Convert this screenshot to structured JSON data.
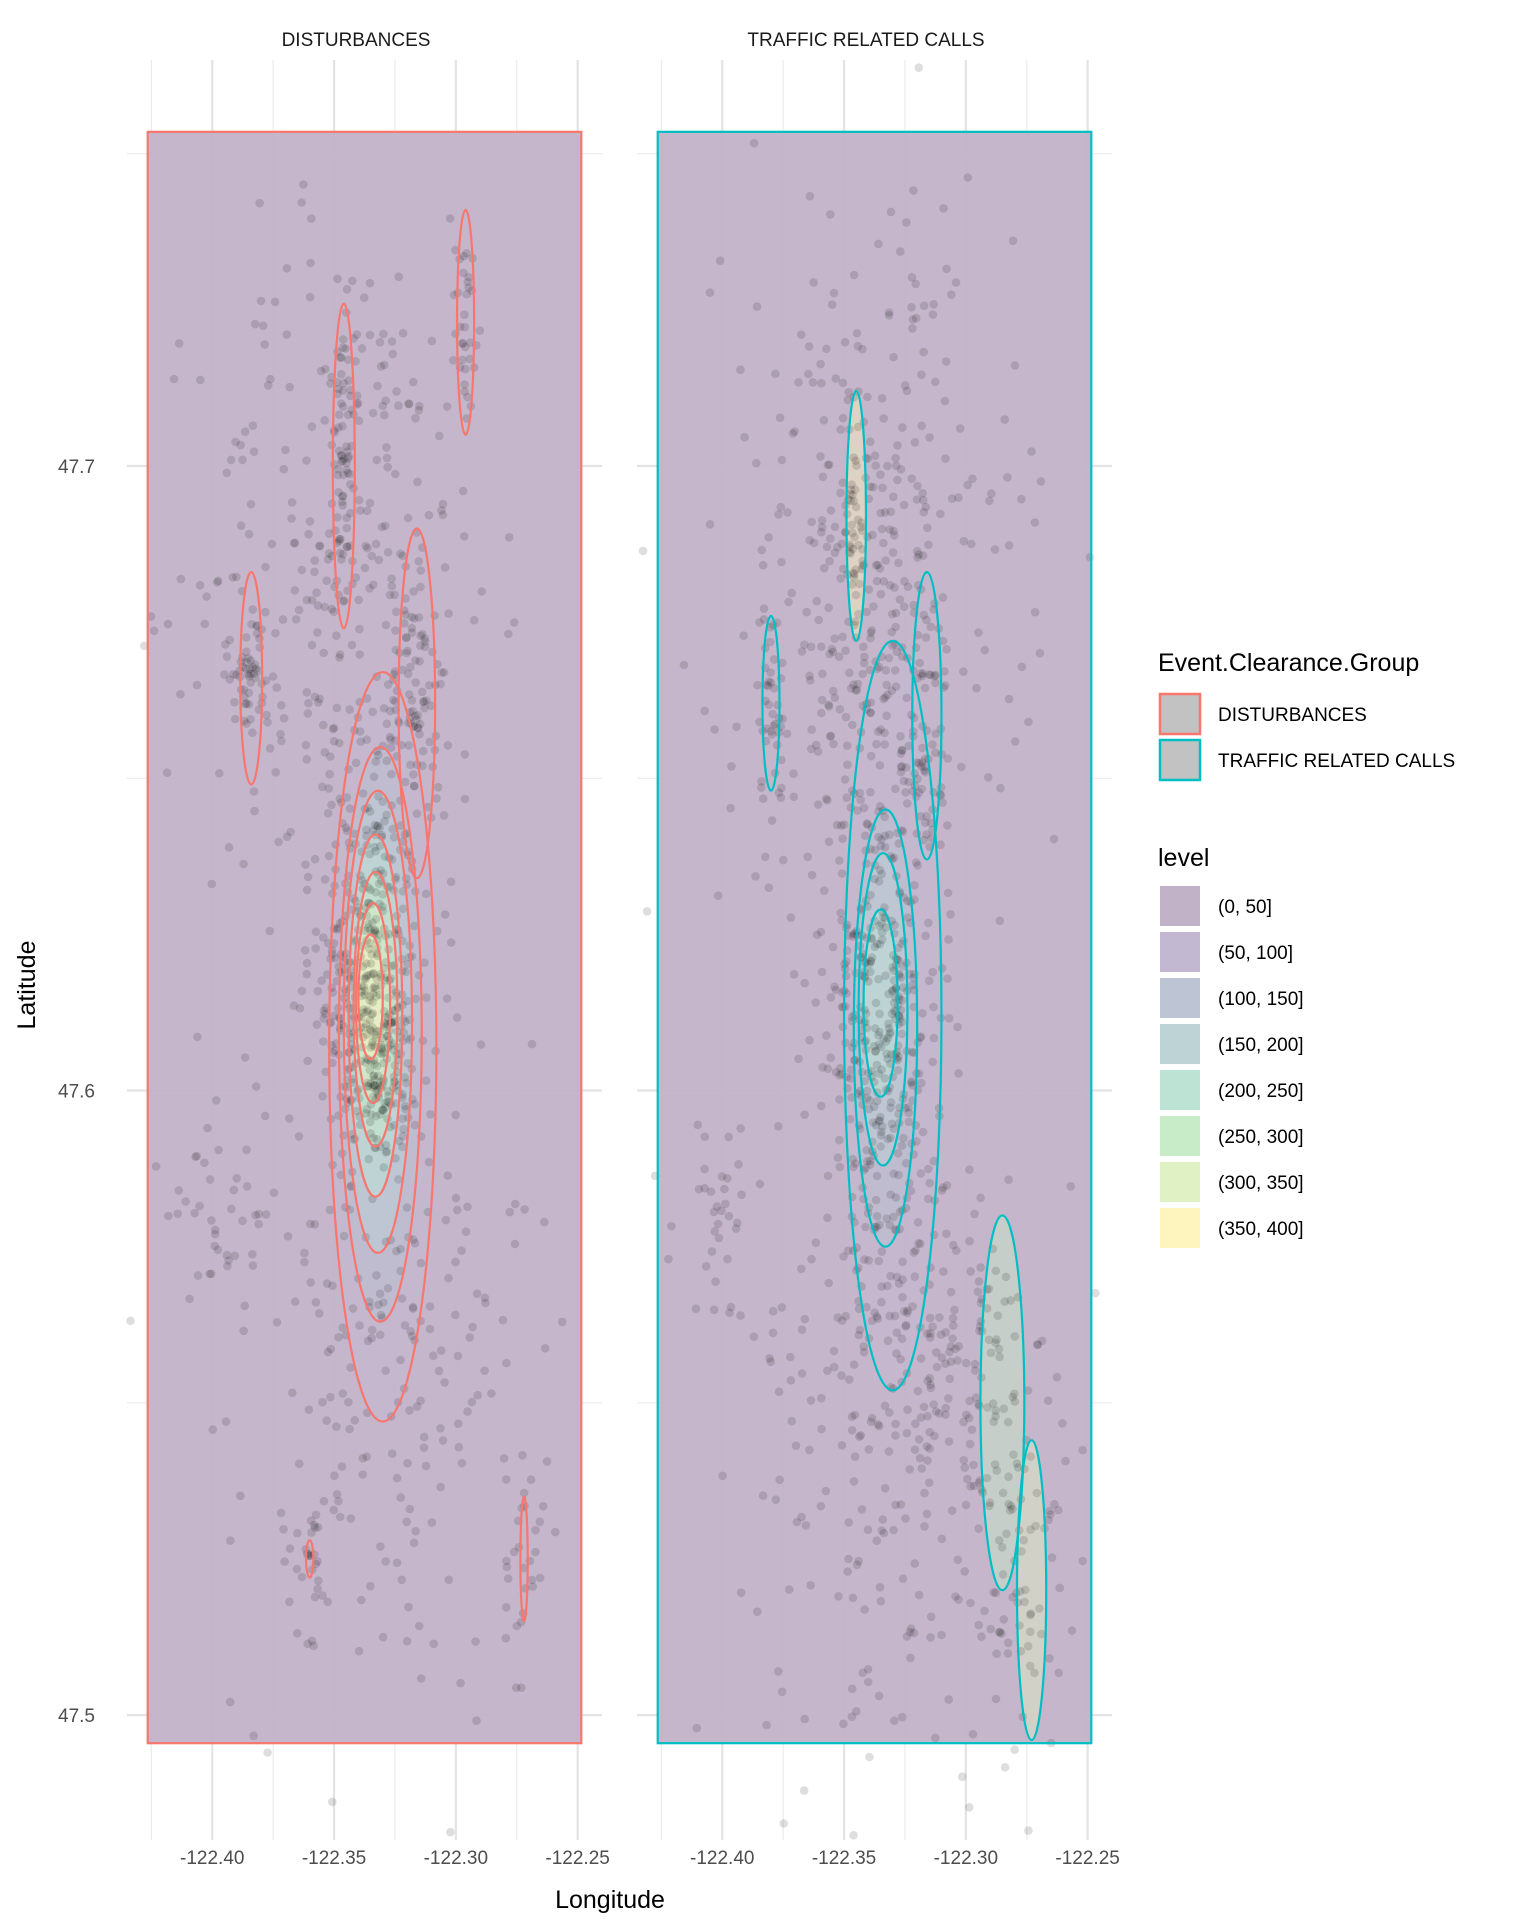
{
  "chart_data": {
    "type": "scatter",
    "subtype": "faceted scatter with 2D density contours",
    "xlabel": "Longitude",
    "ylabel": "Latitude",
    "xlim": [
      -122.435,
      -122.24
    ],
    "ylim": [
      47.48,
      47.765
    ],
    "x_ticks": [
      -122.4,
      -122.35,
      -122.3,
      -122.25
    ],
    "x_tick_labels": [
      "-122.40",
      "-122.35",
      "-122.30",
      "-122.25"
    ],
    "y_ticks": [
      47.5,
      47.6,
      47.7
    ],
    "y_tick_labels": [
      "47.5",
      "47.6",
      "47.7"
    ],
    "grid": true,
    "legend_position": "right",
    "panel_fill": {
      "lon_min": -122.4265,
      "lon_max": -122.2485,
      "lat_min": 47.4955,
      "lat_max": 47.7535
    },
    "facets": [
      {
        "title": "DISTURBANCES",
        "color": "#f8766d",
        "clusters": [
          {
            "x": -122.336,
            "y": 47.618,
            "sx": 0.01,
            "sy": 0.016,
            "n": 340
          },
          {
            "x": -122.33,
            "y": 47.603,
            "sx": 0.007,
            "sy": 0.006,
            "n": 90
          },
          {
            "x": -122.345,
            "y": 47.697,
            "sx": 0.003,
            "sy": 0.011,
            "n": 70
          },
          {
            "x": -122.318,
            "y": 47.663,
            "sx": 0.005,
            "sy": 0.01,
            "n": 75
          },
          {
            "x": -122.384,
            "y": 47.667,
            "sx": 0.003,
            "sy": 0.005,
            "n": 45
          },
          {
            "x": -122.296,
            "y": 47.723,
            "sx": 0.002,
            "sy": 0.007,
            "n": 35
          },
          {
            "x": -122.33,
            "y": 47.56,
            "sx": 0.03,
            "sy": 0.03,
            "n": 220
          },
          {
            "x": -122.345,
            "y": 47.68,
            "sx": 0.03,
            "sy": 0.03,
            "n": 320
          },
          {
            "x": -122.36,
            "y": 47.525,
            "sx": 0.006,
            "sy": 0.006,
            "n": 30
          },
          {
            "x": -122.272,
            "y": 47.525,
            "sx": 0.004,
            "sy": 0.01,
            "n": 30
          },
          {
            "x": -122.395,
            "y": 47.58,
            "sx": 0.012,
            "sy": 0.008,
            "n": 40
          }
        ],
        "contours": [
          {
            "cx": -122.33,
            "cy": 47.607,
            "rx": 0.022,
            "ry": 0.06
          },
          {
            "cx": -122.331,
            "cy": 47.609,
            "rx": 0.017,
            "ry": 0.046
          },
          {
            "cx": -122.332,
            "cy": 47.611,
            "rx": 0.014,
            "ry": 0.037
          },
          {
            "cx": -122.333,
            "cy": 47.612,
            "rx": 0.011,
            "ry": 0.029
          },
          {
            "cx": -122.333,
            "cy": 47.613,
            "rx": 0.009,
            "ry": 0.022
          },
          {
            "cx": -122.334,
            "cy": 47.614,
            "rx": 0.007,
            "ry": 0.016
          },
          {
            "cx": -122.335,
            "cy": 47.615,
            "rx": 0.005,
            "ry": 0.01
          },
          {
            "cx": -122.346,
            "cy": 47.7,
            "rx": 0.0045,
            "ry": 0.026
          },
          {
            "cx": -122.316,
            "cy": 47.662,
            "rx": 0.0075,
            "ry": 0.028
          },
          {
            "cx": -122.384,
            "cy": 47.666,
            "rx": 0.0045,
            "ry": 0.017
          },
          {
            "cx": -122.296,
            "cy": 47.723,
            "rx": 0.0035,
            "ry": 0.018
          },
          {
            "cx": -122.36,
            "cy": 47.525,
            "rx": 0.0015,
            "ry": 0.003
          },
          {
            "cx": -122.272,
            "cy": 47.525,
            "rx": 0.0015,
            "ry": 0.01
          }
        ]
      },
      {
        "title": "TRAFFIC RELATED CALLS",
        "color": "#00bfc4",
        "clusters": [
          {
            "x": -122.335,
            "y": 47.612,
            "sx": 0.011,
            "sy": 0.022,
            "n": 380
          },
          {
            "x": -122.345,
            "y": 47.69,
            "sx": 0.004,
            "sy": 0.012,
            "n": 60
          },
          {
            "x": -122.318,
            "y": 47.66,
            "sx": 0.006,
            "sy": 0.012,
            "n": 60
          },
          {
            "x": -122.38,
            "y": 47.662,
            "sx": 0.003,
            "sy": 0.008,
            "n": 35
          },
          {
            "x": -122.3,
            "y": 47.555,
            "sx": 0.012,
            "sy": 0.015,
            "n": 90
          },
          {
            "x": -122.275,
            "y": 47.525,
            "sx": 0.008,
            "sy": 0.015,
            "n": 70
          },
          {
            "x": -122.33,
            "y": 47.55,
            "sx": 0.03,
            "sy": 0.03,
            "n": 260
          },
          {
            "x": -122.34,
            "y": 47.68,
            "sx": 0.03,
            "sy": 0.03,
            "n": 360
          },
          {
            "x": -122.4,
            "y": 47.58,
            "sx": 0.01,
            "sy": 0.008,
            "n": 35
          }
        ],
        "contours": [
          {
            "cx": -122.33,
            "cy": 47.612,
            "rx": 0.02,
            "ry": 0.06
          },
          {
            "cx": -122.333,
            "cy": 47.61,
            "rx": 0.013,
            "ry": 0.035
          },
          {
            "cx": -122.334,
            "cy": 47.613,
            "rx": 0.01,
            "ry": 0.025
          },
          {
            "cx": -122.335,
            "cy": 47.614,
            "rx": 0.007,
            "ry": 0.015
          },
          {
            "cx": -122.285,
            "cy": 47.55,
            "rx": 0.009,
            "ry": 0.03
          },
          {
            "cx": -122.273,
            "cy": 47.52,
            "rx": 0.006,
            "ry": 0.024
          },
          {
            "cx": -122.345,
            "cy": 47.692,
            "rx": 0.004,
            "ry": 0.02
          },
          {
            "cx": -122.316,
            "cy": 47.66,
            "rx": 0.006,
            "ry": 0.023
          },
          {
            "cx": -122.38,
            "cy": 47.662,
            "rx": 0.0035,
            "ry": 0.014
          }
        ]
      }
    ],
    "legend_color": {
      "title": "Event.Clearance.Group",
      "entries": [
        {
          "label": "DISTURBANCES",
          "color": "#f8766d"
        },
        {
          "label": "TRAFFIC RELATED CALLS",
          "color": "#00bfc4"
        }
      ]
    },
    "legend_fill": {
      "title": "level",
      "entries": [
        {
          "label": "(0, 50]",
          "color": "#c2b2c8"
        },
        {
          "label": "(50, 100]",
          "color": "#c3b8d2"
        },
        {
          "label": "(100, 150]",
          "color": "#bdc4d3"
        },
        {
          "label": "(150, 200]",
          "color": "#bdd3d6"
        },
        {
          "label": "(200, 250]",
          "color": "#bde3d4"
        },
        {
          "label": "(250, 300]",
          "color": "#c8ecc8"
        },
        {
          "label": "(300, 350]",
          "color": "#e0f2c4"
        },
        {
          "label": "(350, 400]",
          "color": "#fdf5bd"
        }
      ]
    }
  }
}
